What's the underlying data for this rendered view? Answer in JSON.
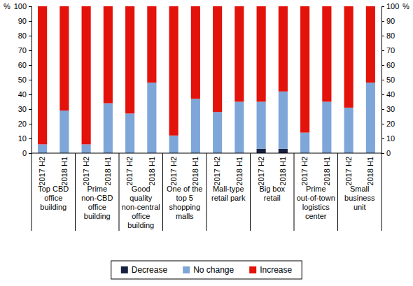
{
  "chart_data": {
    "type": "bar",
    "stacked": true,
    "grid": false,
    "legend": "bottom",
    "ylabel": "%",
    "y2label": "%",
    "ylim": [
      0,
      100
    ],
    "yticks": [
      0,
      10,
      20,
      30,
      40,
      50,
      60,
      70,
      80,
      90,
      100
    ],
    "y2lim": [
      0,
      100
    ],
    "y2ticks": [
      0,
      10,
      20,
      30,
      40,
      50,
      60,
      70,
      80,
      90,
      100
    ],
    "categories": [
      "2017 H2",
      "2018 H1",
      "2017 H2",
      "2018 H1",
      "2017 H2",
      "2018 H1",
      "2017 H2",
      "2018 H1",
      "2017 H2",
      "2018 H1",
      "2017 H2",
      "2018 H1",
      "2017 H2",
      "2018 H1",
      "2017 H2",
      "2018 H1"
    ],
    "category_groups": [
      "Top CBD office building",
      "Prime non-CBD office building",
      "Good quality non-central office building",
      "One of the top 5 shopping malls",
      "Mall-type retail park",
      "Big box retail",
      "Prime out-of-town logistics center",
      "Small business unit"
    ],
    "series": [
      {
        "name": "Decrease",
        "color": "#17203f",
        "values": [
          0,
          0,
          0,
          0,
          0,
          0,
          0,
          0,
          0,
          0,
          3,
          3,
          0,
          0,
          0,
          0
        ]
      },
      {
        "name": "No change",
        "color": "#7ea6d8",
        "values": [
          6,
          29,
          6,
          34,
          27,
          48,
          12,
          37,
          28,
          35,
          32,
          39,
          14,
          35,
          31,
          48
        ]
      },
      {
        "name": "Increase",
        "color": "#e3120b",
        "values": [
          94,
          71,
          94,
          66,
          73,
          52,
          88,
          63,
          72,
          65,
          65,
          58,
          86,
          65,
          69,
          52
        ]
      }
    ]
  }
}
